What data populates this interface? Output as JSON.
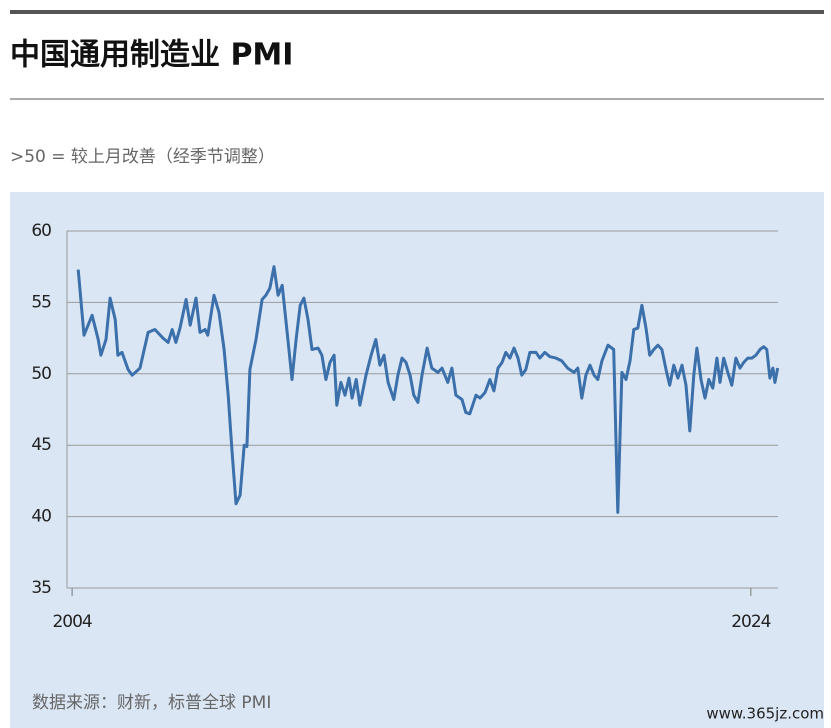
{
  "chart_data": {
    "type": "line",
    "title": "中国通用制造业 PMI",
    "subtitle": ">50 = 较上月改善（经季节调整）",
    "source": "数据来源：财新，标普全球 PMI",
    "watermark": "www.365jz.com",
    "xlim": [
      2003.85,
      2024.8
    ],
    "xticks": [
      2004,
      2024
    ],
    "ylim": [
      35,
      60
    ],
    "yticks": [
      35,
      40,
      45,
      50,
      55,
      60
    ],
    "grid": true,
    "series": [
      {
        "name": "PMI",
        "color": "#3b70ab",
        "x": [
          2004.18,
          2004.35,
          2004.59,
          2004.77,
          2004.85,
          2005.0,
          2005.12,
          2005.27,
          2005.35,
          2005.47,
          2005.65,
          2005.77,
          2006.0,
          2006.24,
          2006.44,
          2006.68,
          2006.83,
          2006.95,
          2007.06,
          2007.18,
          2007.36,
          2007.48,
          2007.65,
          2007.77,
          2007.92,
          2008.0,
          2008.18,
          2008.33,
          2008.48,
          2008.6,
          2008.71,
          2008.83,
          2008.95,
          2009.07,
          2009.15,
          2009.24,
          2009.42,
          2009.6,
          2009.71,
          2009.83,
          2009.95,
          2010.07,
          2010.19,
          2010.36,
          2010.48,
          2010.6,
          2010.72,
          2010.83,
          2010.95,
          2011.07,
          2011.25,
          2011.36,
          2011.48,
          2011.6,
          2011.72,
          2011.8,
          2011.92,
          2012.04,
          2012.16,
          2012.25,
          2012.37,
          2012.48,
          2012.66,
          2012.81,
          2012.95,
          2013.07,
          2013.19,
          2013.31,
          2013.48,
          2013.6,
          2013.72,
          2013.84,
          2013.96,
          2014.07,
          2014.19,
          2014.31,
          2014.46,
          2014.6,
          2014.78,
          2014.9,
          2015.07,
          2015.19,
          2015.31,
          2015.49,
          2015.6,
          2015.72,
          2015.9,
          2016.02,
          2016.17,
          2016.31,
          2016.43,
          2016.55,
          2016.67,
          2016.78,
          2016.9,
          2017.02,
          2017.14,
          2017.25,
          2017.37,
          2017.49,
          2017.67,
          2017.78,
          2017.93,
          2018.08,
          2018.26,
          2018.43,
          2018.6,
          2018.79,
          2018.9,
          2019.02,
          2019.14,
          2019.26,
          2019.38,
          2019.49,
          2019.61,
          2019.79,
          2019.96,
          2020.08,
          2020.2,
          2020.32,
          2020.44,
          2020.55,
          2020.67,
          2020.79,
          2020.91,
          2021.02,
          2021.14,
          2021.26,
          2021.38,
          2021.5,
          2021.61,
          2021.73,
          2021.85,
          2021.97,
          2022.09,
          2022.2,
          2022.32,
          2022.41,
          2022.53,
          2022.65,
          2022.76,
          2022.88,
          2023.0,
          2023.09,
          2023.2,
          2023.32,
          2023.44,
          2023.56,
          2023.68,
          2023.79,
          2023.91,
          2024.03,
          2024.15,
          2024.27,
          2024.38,
          2024.47,
          2024.56,
          2024.65,
          2024.71,
          2024.79
        ],
        "values": [
          57.3,
          52.7,
          54.1,
          52.4,
          51.3,
          52.4,
          55.3,
          53.8,
          51.3,
          51.5,
          50.3,
          49.9,
          50.4,
          52.9,
          53.1,
          52.5,
          52.2,
          53.1,
          52.2,
          53.2,
          55.2,
          53.4,
          55.3,
          52.9,
          53.1,
          52.7,
          55.5,
          54.3,
          51.7,
          48.5,
          44.7,
          40.9,
          41.5,
          45,
          44.9,
          50.3,
          52.4,
          55.2,
          55.5,
          56,
          57.5,
          55.5,
          56.2,
          52.4,
          49.6,
          52.4,
          54.8,
          55.3,
          53.8,
          51.7,
          51.8,
          51.3,
          49.6,
          50.8,
          51.3,
          47.8,
          49.4,
          48.5,
          49.7,
          48.3,
          49.6,
          47.8,
          49.9,
          51.3,
          52.4,
          50.6,
          51.3,
          49.4,
          48.2,
          49.9,
          51.1,
          50.8,
          49.9,
          48.5,
          48,
          49.9,
          51.8,
          50.4,
          50.1,
          50.4,
          49.4,
          50.4,
          48.5,
          48.2,
          47.3,
          47.2,
          48.5,
          48.3,
          48.7,
          49.6,
          48.8,
          50.4,
          50.8,
          51.5,
          51.1,
          51.8,
          51.1,
          49.9,
          50.3,
          51.5,
          51.5,
          51.1,
          51.5,
          51.2,
          51.1,
          50.9,
          50.4,
          50.1,
          50.4,
          48.3,
          49.9,
          50.6,
          49.9,
          49.6,
          50.9,
          52,
          51.7,
          40.3,
          50.1,
          49.6,
          50.9,
          53.1,
          53.2,
          54.8,
          53.2,
          51.3,
          51.7,
          52,
          51.7,
          50.3,
          49.2,
          50.6,
          49.7,
          50.6,
          49.2,
          46,
          49.9,
          51.8,
          49.6,
          48.3,
          49.6,
          49,
          51.1,
          49.4,
          51.1,
          50.1,
          49.2,
          51.1,
          50.4,
          50.8,
          51.1,
          51.1,
          51.3,
          51.7,
          51.9,
          51.7,
          49.7,
          50.4,
          49.4,
          50.4
        ]
      }
    ]
  }
}
